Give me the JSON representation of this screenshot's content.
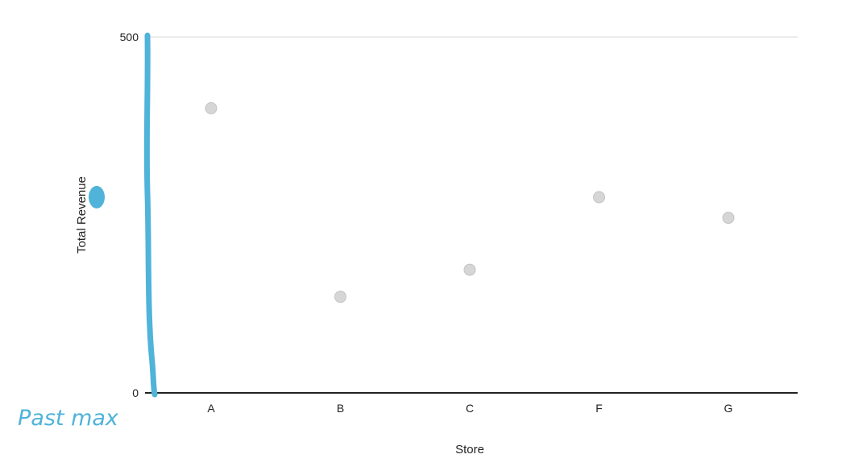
{
  "chart_data": {
    "type": "scatter",
    "title": "",
    "xlabel": "Store",
    "ylabel": "Total Revenue",
    "categories": [
      "A",
      "B",
      "C",
      "F",
      "G"
    ],
    "values": [
      400,
      135,
      173,
      275,
      246
    ],
    "ylim": [
      0,
      500
    ],
    "y_ticks": [
      0,
      500
    ],
    "grid": false,
    "legend": "none",
    "point_color": "#d6d6d6",
    "axis_color": "#222222"
  },
  "annotations": {
    "handwritten_note": "Past max",
    "marker_value": 275,
    "marker_color": "#4fb3da"
  }
}
